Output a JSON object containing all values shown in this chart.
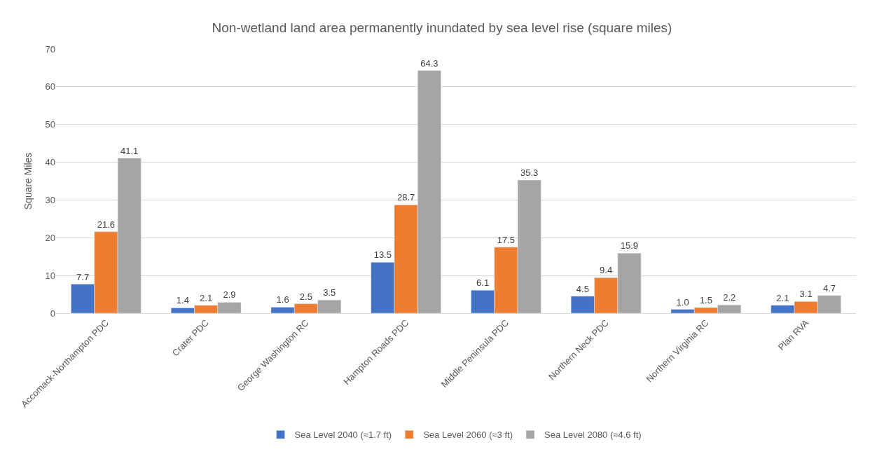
{
  "chart_data": {
    "type": "bar",
    "title": "Non-wetland land area permanently inundated by sea level rise (square miles)",
    "ylabel": "Square Miles",
    "categories": [
      "Accomack-Northampton PDC",
      "Crater PDC",
      "George Washington RC",
      "Hampton Roads PDC",
      "Middle Peninsula PDC",
      "Northern Neck PDC",
      "Northern Virginia RC",
      "Plan RVA"
    ],
    "series": [
      {
        "name": "Sea Level 2040 (≈1.7 ft)",
        "color": "#4472c4",
        "values": [
          7.7,
          1.4,
          1.6,
          13.5,
          6.1,
          4.5,
          1.0,
          2.1
        ],
        "value_labels": [
          "7.7",
          "1.4",
          "1.6",
          "13.5",
          "6.1",
          "4.5",
          "1.0",
          "2.1"
        ]
      },
      {
        "name": "Sea Level 2060 (≈3 ft)",
        "color": "#ed7d31",
        "values": [
          21.6,
          2.1,
          2.5,
          28.7,
          17.5,
          9.4,
          1.5,
          3.1
        ],
        "value_labels": [
          "21.6",
          "2.1",
          "2.5",
          "28.7",
          "17.5",
          "9.4",
          "1.5",
          "3.1"
        ]
      },
      {
        "name": "Sea Level 2080 (≈4.6 ft)",
        "color": "#a5a5a5",
        "values": [
          41.1,
          2.9,
          3.5,
          64.3,
          35.3,
          15.9,
          2.2,
          4.7
        ],
        "value_labels": [
          "41.1",
          "2.9",
          "3.5",
          "64.3",
          "35.3",
          "15.9",
          "2.2",
          "4.7"
        ]
      }
    ],
    "ylim": [
      0,
      70
    ],
    "yticks": [
      0,
      10,
      20,
      30,
      40,
      50,
      60,
      70
    ],
    "grid": "y",
    "legend": "bottom"
  }
}
